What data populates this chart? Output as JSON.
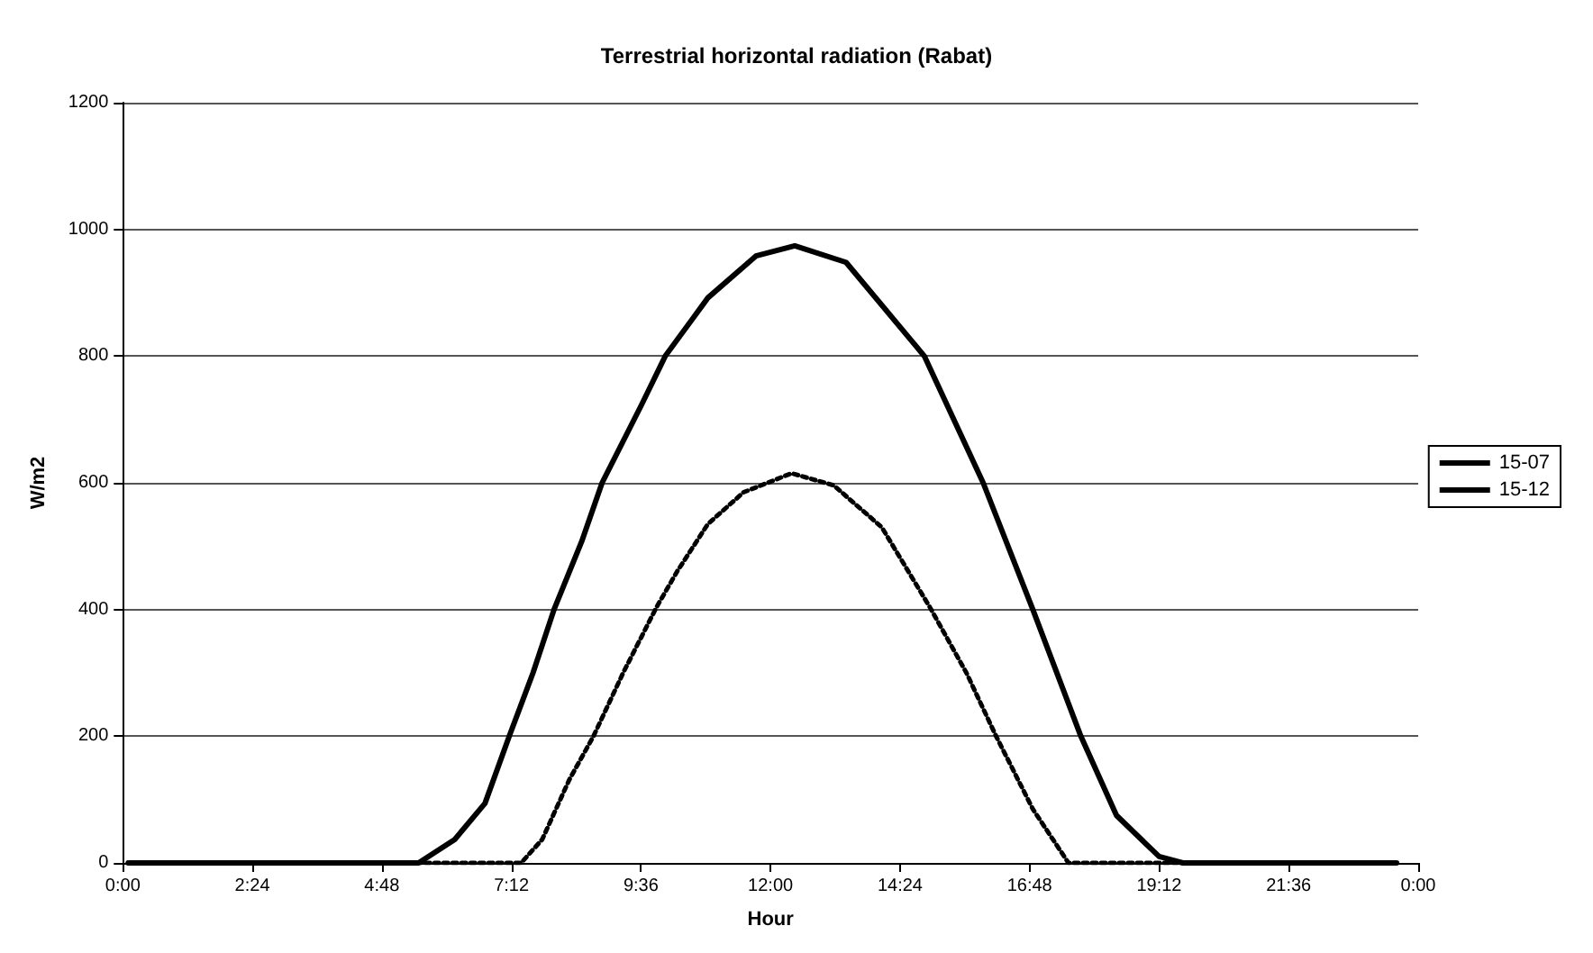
{
  "chart_data": {
    "type": "line",
    "title": "Terrestrial horizontal radiation (Rabat)",
    "xlabel": "Hour",
    "ylabel": "W/m2",
    "xlim": [
      0,
      24
    ],
    "xticks": [
      {
        "value": 0,
        "label": "0:00"
      },
      {
        "value": 2.4,
        "label": "2:24"
      },
      {
        "value": 4.8,
        "label": "4:48"
      },
      {
        "value": 7.2,
        "label": "7:12"
      },
      {
        "value": 9.6,
        "label": "9:36"
      },
      {
        "value": 12,
        "label": "12:00"
      },
      {
        "value": 14.4,
        "label": "14:24"
      },
      {
        "value": 16.8,
        "label": "16:48"
      },
      {
        "value": 19.2,
        "label": "19:12"
      },
      {
        "value": 21.6,
        "label": "21:36"
      },
      {
        "value": 24,
        "label": "0:00"
      }
    ],
    "ylim": [
      0,
      1200
    ],
    "yticks": [
      0,
      200,
      400,
      600,
      800,
      1000,
      1200
    ],
    "grid": "y",
    "legend": "right",
    "marker": "none",
    "series": [
      {
        "name": "15-07",
        "color": "#000000",
        "line_style": "solid",
        "x": [
          0.1,
          2,
          4,
          5.48,
          6.15,
          6.71,
          7.16,
          7.6,
          7.99,
          8.5,
          8.88,
          9.61,
          10.05,
          10.84,
          11.73,
          12.45,
          13.4,
          14.85,
          15.94,
          16.86,
          17.75,
          18.41,
          19.2,
          19.64,
          21,
          23.6
        ],
        "values": [
          0,
          0,
          0,
          0,
          37,
          94,
          200,
          300,
          400,
          507,
          600,
          723,
          800,
          892,
          958,
          974,
          948,
          800,
          600,
          400,
          200,
          75,
          10,
          0,
          0,
          0
        ]
      },
      {
        "name": "15-12",
        "color": "#000000",
        "line_style": "dotted",
        "x": [
          0.1,
          2,
          4,
          6,
          7.38,
          7.77,
          8.27,
          8.72,
          9.27,
          9.89,
          10.27,
          10.84,
          11.5,
          12.39,
          13.17,
          14.06,
          14.95,
          15.63,
          16.18,
          16.86,
          17.52,
          19,
          21,
          23.6
        ],
        "values": [
          0,
          0,
          0,
          0,
          0,
          37,
          131,
          200,
          300,
          404,
          460,
          535,
          585,
          615,
          596,
          530,
          404,
          300,
          200,
          85,
          0,
          0,
          0,
          0
        ]
      }
    ]
  }
}
